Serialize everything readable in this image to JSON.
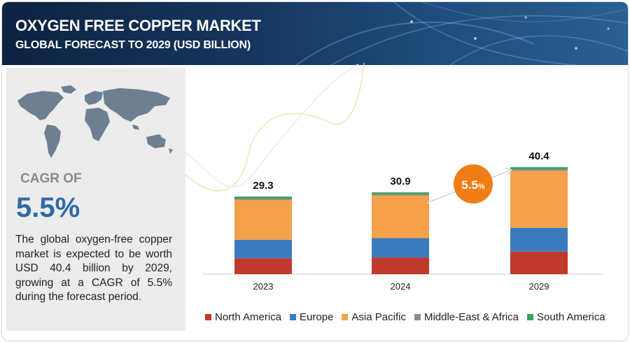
{
  "header": {
    "title": "OXYGEN FREE COPPER MARKET",
    "subtitle": "GLOBAL FORECAST TO 2029 (USD BILLION)"
  },
  "sidebar": {
    "cagr_label": "CAGR OF",
    "cagr_value": "5.5%",
    "description": "The global oxygen-free copper market is expected to be worth USD 40.4 billion by 2029, growing at a CAGR of 5.5% during the forecast period",
    "description_end": "."
  },
  "growth_badge": {
    "value": "5.5",
    "unit": "%"
  },
  "colors": {
    "north_america": "#c0392b",
    "europe": "#3a7abf",
    "asia_pacific": "#f5a04a",
    "middle_east_africa": "#8c8c8c",
    "south_america": "#3aa65a",
    "badge": "#f07d13"
  },
  "chart_data": {
    "type": "bar",
    "stacked": true,
    "categories": [
      "2023",
      "2024",
      "2029"
    ],
    "totals": [
      "29.3",
      "30.9",
      "40.4"
    ],
    "series": [
      {
        "name": "North America",
        "color": "#c0392b",
        "values": [
          6.0,
          6.3,
          8.5
        ]
      },
      {
        "name": "Europe",
        "color": "#3a7abf",
        "values": [
          7.0,
          7.3,
          9.0
        ]
      },
      {
        "name": "Asia Pacific",
        "color": "#f5a04a",
        "values": [
          15.0,
          16.1,
          21.5
        ]
      },
      {
        "name": "Middle-East & Africa",
        "color": "#8c8c8c",
        "values": [
          0.5,
          0.5,
          0.6
        ]
      },
      {
        "name": "South America",
        "color": "#3aa65a",
        "values": [
          0.8,
          0.7,
          0.8
        ]
      }
    ],
    "ylim": [
      0,
      40.4
    ],
    "grid": false,
    "legend_position": "bottom"
  }
}
